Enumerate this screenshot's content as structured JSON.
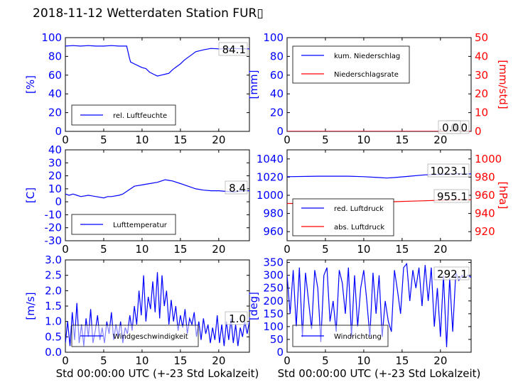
{
  "page": {
    "title": "2018-11-12 Wetterdaten Station FUR▯"
  },
  "colors": {
    "primary": "#0000ff",
    "secondary": "#ff0000",
    "axis": "#000000"
  },
  "chart_data": [
    {
      "id": "humidity",
      "type": "line",
      "xlim": [
        0,
        24
      ],
      "xticks": [
        0,
        5,
        10,
        15,
        20
      ],
      "ylim": [
        0,
        100
      ],
      "yticks": [
        0,
        20,
        40,
        60,
        80,
        100
      ],
      "ylabel": "[%]",
      "ylabel_color": "#0000ff",
      "ytick_color": "#0000ff",
      "series": [
        {
          "name": "rel. Luftfeuchte",
          "color": "#0000ff",
          "x": [
            0,
            1,
            2,
            3,
            4,
            5,
            6,
            7,
            8,
            8.3,
            8.5,
            9,
            9.5,
            10,
            10.5,
            11,
            11.5,
            12,
            12.5,
            13,
            13.5,
            14,
            14.5,
            15,
            15.5,
            16,
            16.5,
            17,
            18,
            19,
            20,
            21,
            22,
            23,
            24
          ],
          "y": [
            91,
            91.5,
            91,
            91.5,
            91,
            91,
            91.5,
            91,
            91,
            80,
            74,
            72,
            70,
            68,
            67,
            63,
            61,
            59,
            60,
            61,
            62,
            66,
            69,
            72,
            76,
            79,
            82,
            85,
            87,
            88.5,
            88,
            88,
            88.5,
            88,
            88
          ]
        }
      ],
      "legend": {
        "entries": [
          "rel. Luftfeuchte"
        ],
        "position": "lower-left"
      },
      "value_labels": [
        "84.1"
      ]
    },
    {
      "id": "precip",
      "type": "line",
      "xlim": [
        0,
        24
      ],
      "xticks": [
        0,
        5,
        10,
        15,
        20
      ],
      "ylim": [
        0,
        100
      ],
      "yticks": [
        0,
        20,
        40,
        60,
        80,
        100
      ],
      "ylabel": "[mm]",
      "ylabel_color": "#0000ff",
      "ytick_color": "#0000ff",
      "y2lim": [
        0,
        50
      ],
      "y2ticks": [
        0,
        10,
        20,
        30,
        40,
        50
      ],
      "y2label": "[mm/std]",
      "y2label_color": "#ff0000",
      "y2tick_color": "#ff0000",
      "series": [
        {
          "name": "kum. Niederschlag",
          "color": "#0000ff",
          "axis": "left",
          "x": [
            0,
            24
          ],
          "y": [
            0,
            0
          ]
        },
        {
          "name": "Niederschlagsrate",
          "color": "#ff0000",
          "axis": "right",
          "x": [
            0,
            24
          ],
          "y": [
            0,
            0
          ]
        }
      ],
      "legend": {
        "entries": [
          "kum. Niederschlag",
          "Niederschlagsrate"
        ],
        "position": "upper-left"
      },
      "value_labels": [
        "0.0",
        "0.0"
      ]
    },
    {
      "id": "temperature",
      "type": "line",
      "xlim": [
        0,
        24
      ],
      "xticks": [
        0,
        5,
        10,
        15,
        20
      ],
      "ylim": [
        -30,
        40
      ],
      "yticks": [
        -30,
        -20,
        -10,
        0,
        10,
        20,
        30,
        40
      ],
      "ylabel": "[C]",
      "ylabel_color": "#0000ff",
      "ytick_color": "#0000ff",
      "series": [
        {
          "name": "Lufttemperatur",
          "color": "#0000ff",
          "x": [
            0,
            0.5,
            1,
            1.5,
            2,
            3,
            4,
            5,
            5.5,
            6,
            7,
            7.5,
            8,
            8.5,
            9,
            10,
            11,
            12,
            12.5,
            13,
            13.5,
            14,
            15,
            16,
            17,
            18,
            19,
            20,
            21,
            22,
            23,
            24
          ],
          "y": [
            6,
            5,
            6,
            5,
            4,
            5,
            4,
            3,
            4,
            4,
            5,
            6,
            8,
            10,
            12,
            13,
            14,
            15,
            16,
            17,
            16.5,
            16,
            14,
            12,
            10,
            9,
            8.5,
            8.5,
            8,
            7.5,
            8.5,
            8.5
          ]
        }
      ],
      "legend": {
        "entries": [
          "Lufttemperatur"
        ],
        "position": "lower-left"
      },
      "value_labels": [
        "8.4"
      ]
    },
    {
      "id": "pressure",
      "type": "line",
      "xlim": [
        0,
        24
      ],
      "xticks": [
        0,
        5,
        10,
        15,
        20
      ],
      "ylim": [
        950,
        1050
      ],
      "yticks": [
        960,
        980,
        1000,
        1020,
        1040
      ],
      "ylabel": "",
      "ytick_color": "#0000ff",
      "y2lim": [
        910,
        1010
      ],
      "y2ticks": [
        920,
        940,
        960,
        980,
        1000
      ],
      "y2label": "[hPa]",
      "y2label_color": "#ff0000",
      "y2tick_color": "#ff0000",
      "series": [
        {
          "name": "red. Luftdruck",
          "color": "#0000ff",
          "axis": "left",
          "x": [
            0,
            4,
            8,
            10,
            12,
            13,
            14,
            16,
            18,
            20,
            22,
            24
          ],
          "y": [
            1020.5,
            1021,
            1021,
            1020.5,
            1019.5,
            1019,
            1019.5,
            1021,
            1022.5,
            1023,
            1023.5,
            1023.5
          ]
        },
        {
          "name": "abs. Luftdruck",
          "color": "#ff0000",
          "axis": "right",
          "x": [
            0,
            4,
            8,
            10,
            12,
            14,
            16,
            18,
            20,
            22,
            24
          ],
          "y": [
            951,
            951,
            951,
            952,
            952.5,
            953,
            953.5,
            954,
            954.5,
            955,
            955
          ]
        }
      ],
      "legend": {
        "entries": [
          "red. Luftdruck",
          "abs. Luftdruck"
        ],
        "position": "lower-left"
      },
      "value_labels": [
        "1023.1",
        "955.1"
      ]
    },
    {
      "id": "windspeed",
      "type": "line",
      "xlim": [
        0,
        24
      ],
      "xticks": [
        0,
        5,
        10,
        15,
        20
      ],
      "ylim": [
        0,
        3.0
      ],
      "yticks": [
        0.0,
        0.5,
        1.0,
        1.5,
        2.0,
        2.5,
        3.0
      ],
      "ylabel": "[m/s]",
      "ylabel_color": "#0000ff",
      "ytick_color": "#0000ff",
      "xlabel": "Std 00:00:00 UTC (+-23 Std Lokalzeit)",
      "series": [
        {
          "name": "Windgeschwindigkeit",
          "color": "#0000ff",
          "x": [
            0,
            0.3,
            0.6,
            0.9,
            1.2,
            1.5,
            1.8,
            2.1,
            2.4,
            2.7,
            3.0,
            3.3,
            3.6,
            3.9,
            4.2,
            4.5,
            4.8,
            5.1,
            5.4,
            5.7,
            6.0,
            6.3,
            6.6,
            6.9,
            7.2,
            7.5,
            7.8,
            8.1,
            8.4,
            8.7,
            9.0,
            9.3,
            9.6,
            9.9,
            10.2,
            10.5,
            10.8,
            11.1,
            11.4,
            11.7,
            12.0,
            12.3,
            12.6,
            12.9,
            13.2,
            13.5,
            13.8,
            14.1,
            14.4,
            14.7,
            15.0,
            15.3,
            15.6,
            15.9,
            16.2,
            16.5,
            16.8,
            17.1,
            17.4,
            17.7,
            18.0,
            18.3,
            18.6,
            18.9,
            19.2,
            19.5,
            19.8,
            20.1,
            20.4,
            20.7,
            21.0,
            21.3,
            21.6,
            21.9,
            22.2,
            22.5,
            22.8,
            23.1,
            23.4,
            23.7,
            24.0
          ],
          "y": [
            0.3,
            1.0,
            0.2,
            1.3,
            0.4,
            1.6,
            0.3,
            0.9,
            0.2,
            1.1,
            0.5,
            1.4,
            0.3,
            0.7,
            1.2,
            0.4,
            0.8,
            0.3,
            1.0,
            0.6,
            1.3,
            0.4,
            0.9,
            0.5,
            1.0,
            0.3,
            0.8,
            0.6,
            1.2,
            0.7,
            1.5,
            0.9,
            2.0,
            1.2,
            2.5,
            1.0,
            1.8,
            1.4,
            2.3,
            1.3,
            2.6,
            1.1,
            2.5,
            1.5,
            2.0,
            0.9,
            1.7,
            1.0,
            1.5,
            0.7,
            1.2,
            0.8,
            1.4,
            0.6,
            1.1,
            0.9,
            1.3,
            0.5,
            1.0,
            0.4,
            1.1,
            0.6,
            0.9,
            0.3,
            0.8,
            0.4,
            1.2,
            0.3,
            0.9,
            0.2,
            1.0,
            0.4,
            1.1,
            0.3,
            0.9,
            0.2,
            0.8,
            0.5,
            1.0,
            0.6,
            1.0
          ]
        }
      ],
      "legend": {
        "entries": [
          "Windgeschwindigkeit"
        ],
        "position": "lower-left"
      },
      "value_labels": [
        "1.0"
      ]
    },
    {
      "id": "winddir",
      "type": "line",
      "xlim": [
        0,
        24
      ],
      "xticks": [
        0,
        5,
        10,
        15,
        20
      ],
      "ylim": [
        0,
        360
      ],
      "yticks": [
        0,
        50,
        100,
        150,
        200,
        250,
        300,
        350
      ],
      "ylabel": "[deg]",
      "ylabel_color": "#0000ff",
      "ytick_color": "#0000ff",
      "xlabel": "Std 00:00:00 UTC (+-23 Std Lokalzeit)",
      "series": [
        {
          "name": "Windrichtung",
          "color": "#0000ff",
          "x": [
            0,
            0.4,
            0.8,
            1.2,
            1.6,
            2.0,
            2.4,
            2.8,
            3.2,
            3.6,
            4.0,
            4.4,
            4.8,
            5.2,
            5.6,
            6.0,
            6.4,
            6.8,
            7.2,
            7.6,
            8.0,
            8.4,
            8.8,
            9.2,
            9.6,
            10.0,
            10.4,
            10.8,
            11.2,
            11.6,
            12.0,
            12.4,
            12.8,
            13.2,
            13.6,
            14.0,
            14.4,
            14.8,
            15.2,
            15.6,
            16.0,
            16.4,
            16.8,
            17.2,
            17.6,
            18.0,
            18.4,
            18.8,
            19.2,
            19.6,
            20.0,
            20.4,
            20.8,
            21.2,
            21.6,
            22.0,
            22.4,
            22.8,
            23.2,
            23.6,
            24.0
          ],
          "y": [
            300,
            150,
            320,
            100,
            330,
            60,
            310,
            200,
            90,
            320,
            250,
            40,
            300,
            330,
            120,
            200,
            80,
            320,
            270,
            150,
            330,
            60,
            300,
            100,
            250,
            320,
            200,
            60,
            310,
            150,
            300,
            60,
            200,
            120,
            80,
            320,
            240,
            150,
            330,
            345,
            200,
            320,
            250,
            330,
            180,
            340,
            200,
            330,
            100,
            250,
            60,
            300,
            20,
            290,
            80,
            310,
            280,
            300,
            290,
            300,
            292
          ]
        }
      ],
      "legend": {
        "entries": [
          "Windrichtung"
        ],
        "position": "lower-left"
      },
      "value_labels": [
        "292.1"
      ]
    }
  ]
}
